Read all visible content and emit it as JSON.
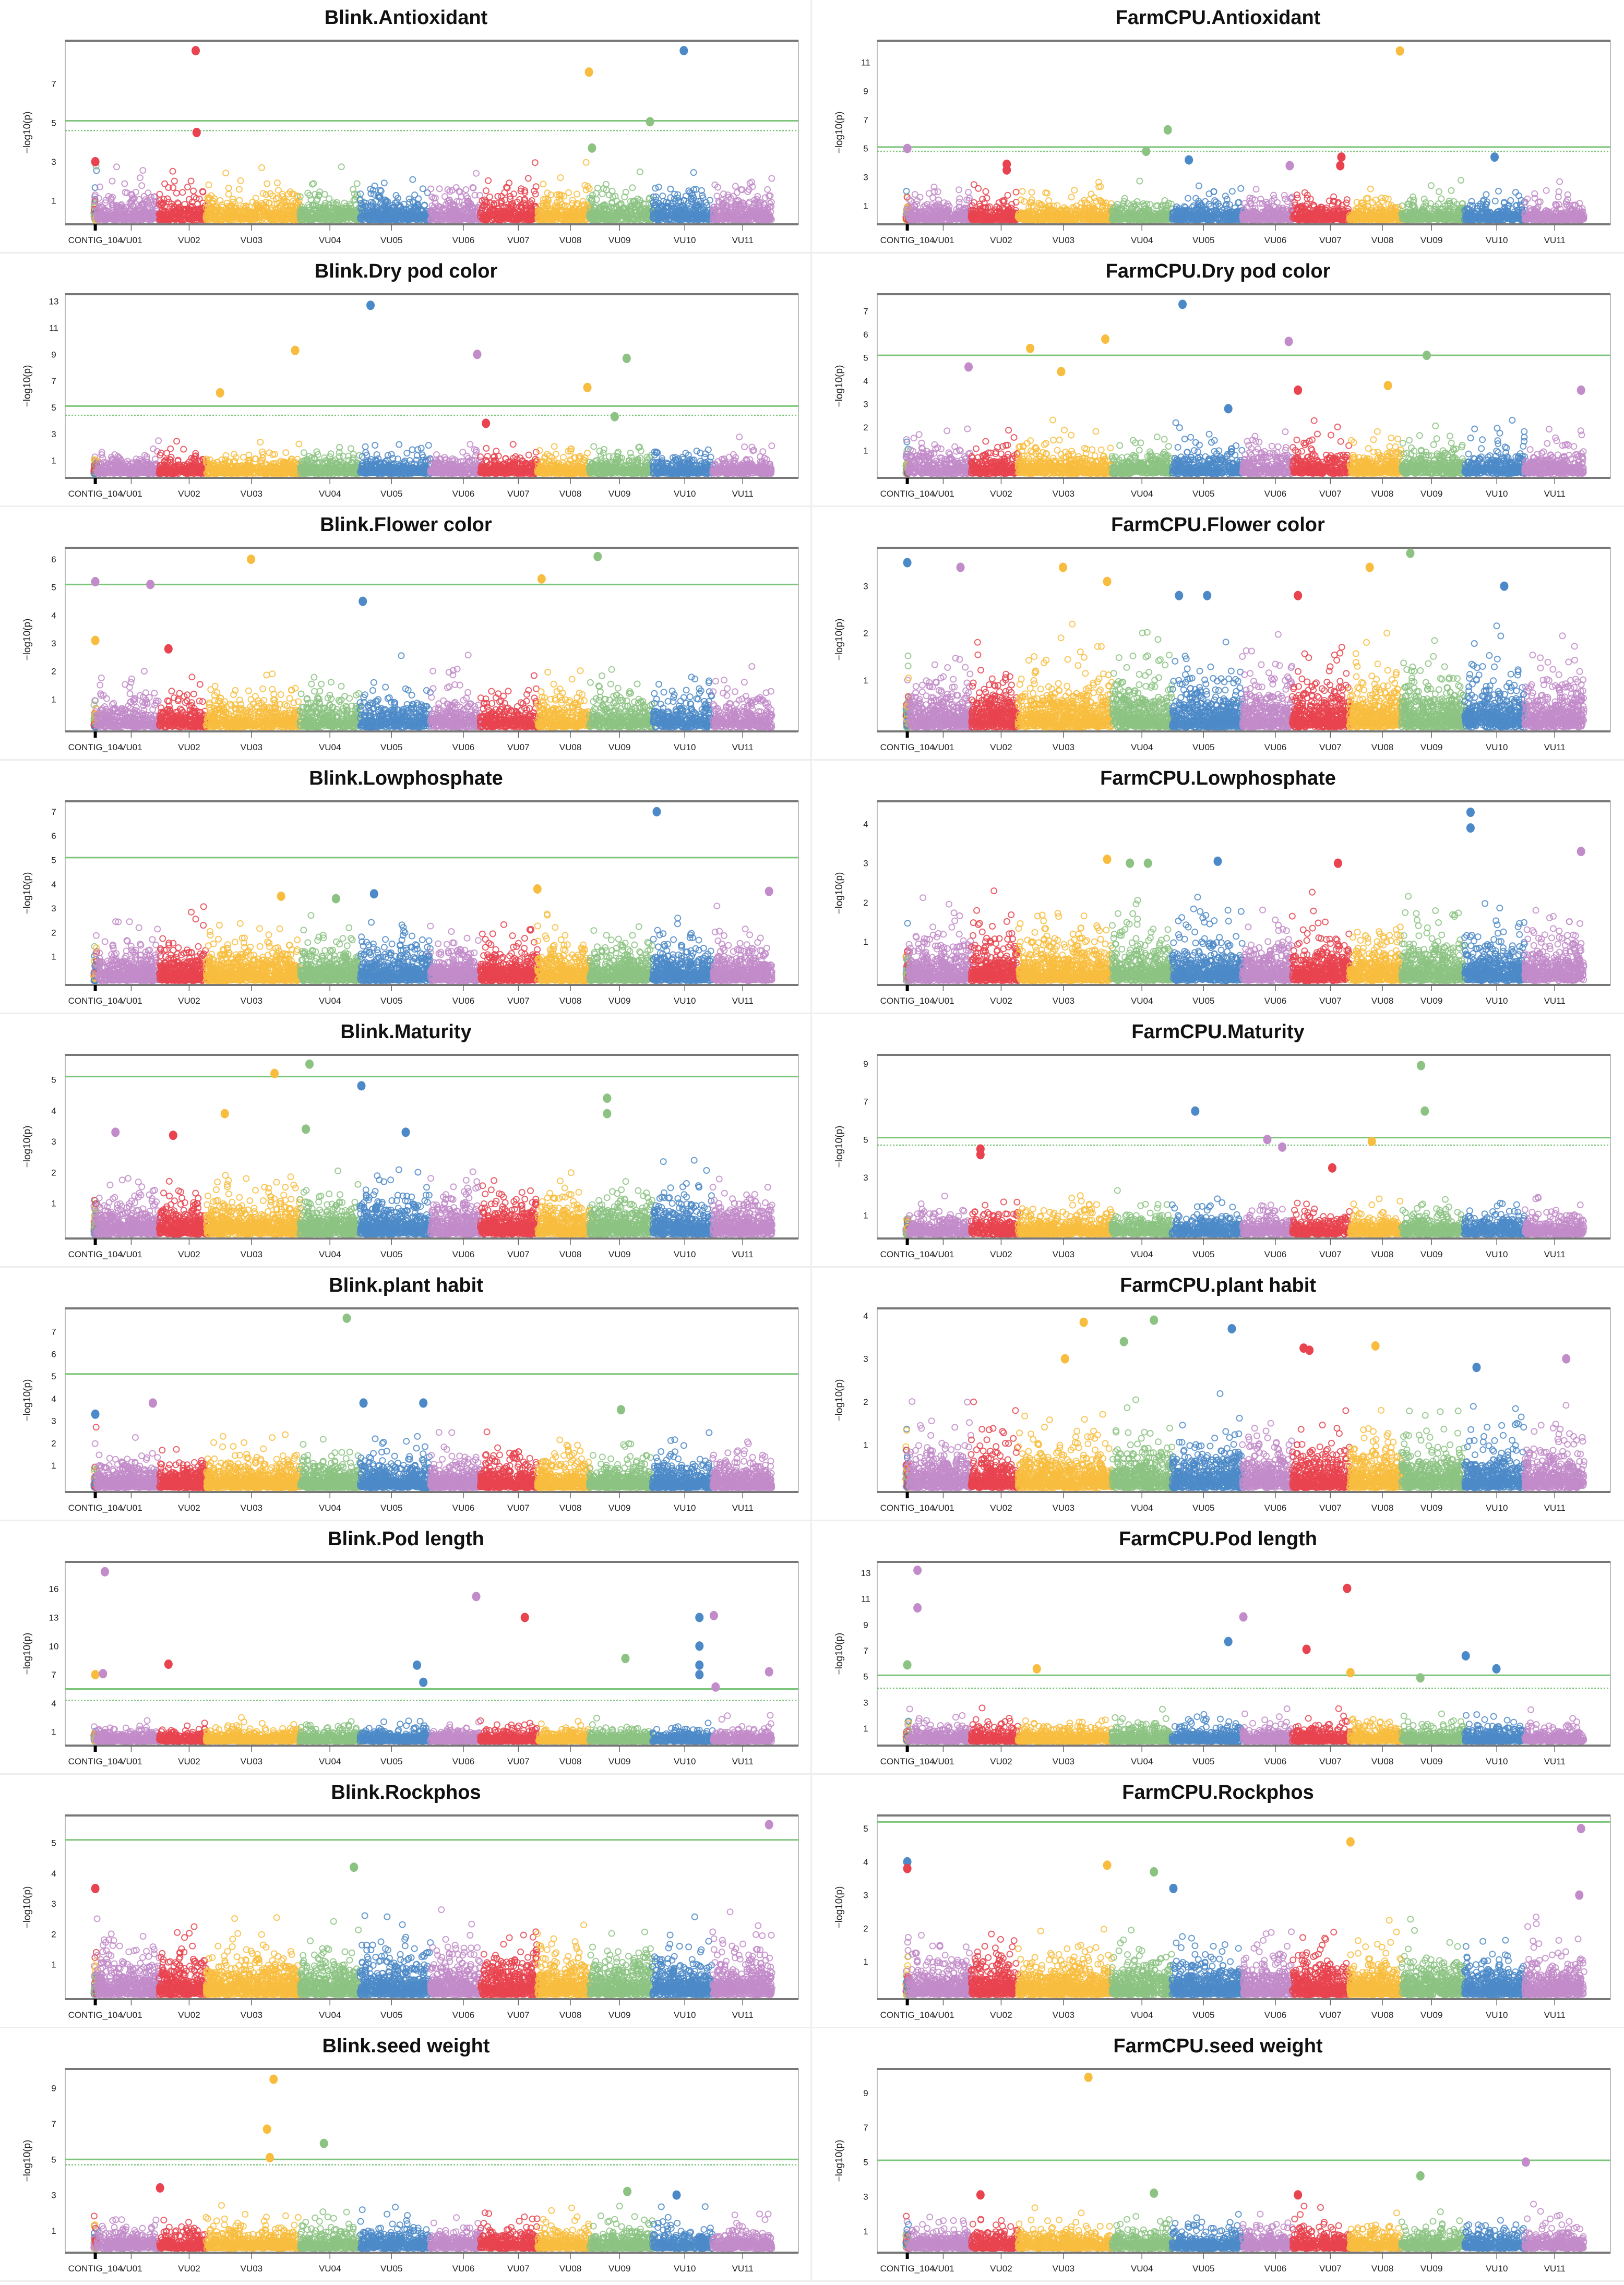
{
  "chart_data": {
    "type": "scatter",
    "subtype": "manhattan",
    "ylabel": "−log10(p)",
    "chromosomes": [
      "CONTIG_104",
      "VU01",
      "VU02",
      "VU03",
      "VU04",
      "VU05",
      "VU06",
      "VU07",
      "VU08",
      "VU09",
      "VU10",
      "VU11"
    ],
    "chromosome_colors": [
      "multi",
      "#C28BC9",
      "#E8434F",
      "#F8BD3E",
      "#8CC383",
      "#4C89C8",
      "#C28BC9",
      "#E8434F",
      "#F8BD3E",
      "#8CC383",
      "#4C89C8",
      "#C28BC9"
    ],
    "threshold_color": "#7CC47A",
    "panels": [
      {
        "title": "Blink.Antioxidant",
        "yticks": [
          1,
          3,
          5,
          7
        ],
        "ylim": [
          0,
          9.05
        ],
        "threshold": 5.1,
        "suggestive": 4.6,
        "background_max": 3.1,
        "dense": false,
        "peaks": [
          [
            2,
            0.78,
            8.7
          ],
          [
            2,
            0.8,
            4.5
          ],
          [
            8,
            0.99,
            7.6
          ],
          [
            9,
            0.96,
            5.05
          ],
          [
            10,
            0.52,
            8.7
          ],
          [
            9,
            0.04,
            3.7
          ],
          [
            0,
            0.5,
            3.0
          ]
        ]
      },
      {
        "title": "FarmCPU.Antioxidant",
        "yticks": [
          1,
          3,
          5,
          7,
          9,
          11
        ],
        "ylim": [
          0,
          12.3
        ],
        "threshold": 5.1,
        "suggestive": 4.8,
        "background_max": 2.9,
        "dense": false,
        "peaks": [
          [
            8,
            0.97,
            11.8
          ],
          [
            4,
            0.93,
            6.3
          ],
          [
            0,
            0.5,
            5.0
          ],
          [
            4,
            0.57,
            4.8
          ],
          [
            5,
            0.24,
            4.2
          ],
          [
            10,
            0.5,
            4.4
          ],
          [
            7,
            0.86,
            4.4
          ],
          [
            7,
            0.84,
            3.8
          ],
          [
            2,
            0.76,
            3.9
          ],
          [
            2,
            0.76,
            3.5
          ],
          [
            6,
            0.95,
            3.8
          ]
        ]
      },
      {
        "title": "Blink.Dry pod color",
        "yticks": [
          1,
          3,
          5,
          7,
          9,
          11,
          13
        ],
        "ylim": [
          0,
          13.3
        ],
        "threshold": 5.1,
        "suggestive": 4.4,
        "background_max": 3.0,
        "dense": false,
        "peaks": [
          [
            5,
            0.15,
            12.7
          ],
          [
            3,
            0.95,
            9.3
          ],
          [
            3,
            0.15,
            6.1
          ],
          [
            6,
            0.94,
            9.0
          ],
          [
            9,
            0.59,
            8.7
          ],
          [
            8,
            0.96,
            6.5
          ],
          [
            9,
            0.4,
            4.3
          ],
          [
            7,
            0.1,
            3.8
          ]
        ]
      },
      {
        "title": "FarmCPU.Dry pod color",
        "yticks": [
          1,
          2,
          3,
          4,
          5,
          6,
          7
        ],
        "ylim": [
          0,
          7.6
        ],
        "threshold": 5.1,
        "suggestive": null,
        "background_max": 2.6,
        "dense": false,
        "peaks": [
          [
            5,
            0.15,
            7.3
          ],
          [
            3,
            0.93,
            5.8
          ],
          [
            3,
            0.13,
            5.4
          ],
          [
            3,
            0.46,
            4.4
          ],
          [
            6,
            0.93,
            5.7
          ],
          [
            9,
            0.4,
            5.1
          ],
          [
            1,
            0.96,
            4.6
          ],
          [
            7,
            0.1,
            3.6
          ],
          [
            8,
            0.74,
            3.8
          ],
          [
            11,
            0.95,
            3.6
          ],
          [
            5,
            0.8,
            2.8
          ]
        ]
      },
      {
        "title": "Blink.Flower color",
        "yticks": [
          1,
          2,
          3,
          4,
          5,
          6
        ],
        "ylim": [
          0,
          6.3
        ],
        "threshold": 5.1,
        "suggestive": null,
        "background_max": 2.6,
        "dense": false,
        "peaks": [
          [
            0,
            0.5,
            5.2
          ],
          [
            1,
            0.86,
            5.1
          ],
          [
            3,
            0.48,
            6.0
          ],
          [
            5,
            0.04,
            4.5
          ],
          [
            8,
            0.08,
            5.3
          ],
          [
            9,
            0.13,
            6.1
          ],
          [
            0,
            0.5,
            3.1
          ],
          [
            2,
            0.2,
            2.8
          ]
        ]
      },
      {
        "title": "FarmCPU.Flower color",
        "yticks": [
          1,
          2,
          3
        ],
        "ylim": [
          0,
          3.75
        ],
        "threshold": null,
        "suggestive": null,
        "background_max": 2.3,
        "dense": true,
        "peaks": [
          [
            9,
            0.14,
            3.7
          ],
          [
            8,
            0.39,
            3.4
          ],
          [
            1,
            0.83,
            3.4
          ],
          [
            3,
            0.48,
            3.4
          ],
          [
            3,
            0.95,
            3.1
          ],
          [
            10,
            0.66,
            3.0
          ],
          [
            5,
            0.1,
            2.8
          ],
          [
            5,
            0.5,
            2.8
          ],
          [
            7,
            0.1,
            2.8
          ],
          [
            0,
            0.5,
            3.5
          ]
        ]
      },
      {
        "title": "Blink.Lowphosphate",
        "yticks": [
          1,
          2,
          3,
          4,
          5,
          6,
          7
        ],
        "ylim": [
          0,
          7.3
        ],
        "threshold": 5.1,
        "suggestive": null,
        "background_max": 3.2,
        "dense": true,
        "peaks": [
          [
            10,
            0.07,
            7.0
          ],
          [
            8,
            0.0,
            3.8
          ],
          [
            5,
            0.2,
            3.6
          ],
          [
            11,
            0.95,
            3.7
          ],
          [
            3,
            0.8,
            3.5
          ],
          [
            4,
            0.6,
            3.4
          ]
        ]
      },
      {
        "title": "FarmCPU.Lowphosphate",
        "yticks": [
          1,
          2,
          3,
          4
        ],
        "ylim": [
          0,
          4.5
        ],
        "threshold": null,
        "suggestive": null,
        "background_max": 2.4,
        "dense": true,
        "peaks": [
          [
            10,
            0.1,
            4.3
          ],
          [
            10,
            0.1,
            3.9
          ],
          [
            11,
            0.95,
            3.3
          ],
          [
            3,
            0.95,
            3.1
          ],
          [
            4,
            0.3,
            3.0
          ],
          [
            4,
            0.6,
            3.0
          ],
          [
            5,
            0.65,
            3.05
          ],
          [
            7,
            0.8,
            3.0
          ]
        ]
      },
      {
        "title": "Blink.Maturity",
        "yticks": [
          1,
          2,
          3,
          4,
          5
        ],
        "ylim": [
          0,
          5.7
        ],
        "threshold": 5.1,
        "suggestive": null,
        "background_max": 2.5,
        "dense": true,
        "peaks": [
          [
            4,
            0.16,
            5.5
          ],
          [
            3,
            0.73,
            5.2
          ],
          [
            5,
            0.02,
            4.8
          ],
          [
            9,
            0.28,
            4.4
          ],
          [
            9,
            0.28,
            3.9
          ],
          [
            3,
            0.2,
            3.9
          ],
          [
            4,
            0.1,
            3.4
          ],
          [
            5,
            0.65,
            3.3
          ],
          [
            1,
            0.3,
            3.3
          ],
          [
            2,
            0.3,
            3.2
          ]
        ]
      },
      {
        "title": "FarmCPU.Maturity",
        "yticks": [
          1,
          3,
          5,
          7,
          9
        ],
        "ylim": [
          0,
          9.3
        ],
        "threshold": 5.1,
        "suggestive": 4.7,
        "background_max": 2.6,
        "dense": false,
        "peaks": [
          [
            9,
            0.31,
            8.9
          ],
          [
            9,
            0.37,
            6.5
          ],
          [
            5,
            0.33,
            6.5
          ],
          [
            6,
            0.5,
            5.0
          ],
          [
            6,
            0.8,
            4.6
          ],
          [
            8,
            0.43,
            4.9
          ],
          [
            2,
            0.2,
            4.5
          ],
          [
            2,
            0.2,
            4.2
          ],
          [
            7,
            0.7,
            3.5
          ]
        ]
      },
      {
        "title": "Blink.plant habit",
        "yticks": [
          1,
          2,
          3,
          4,
          5,
          6,
          7
        ],
        "ylim": [
          0,
          7.9
        ],
        "threshold": 5.1,
        "suggestive": null,
        "background_max": 2.8,
        "dense": true,
        "peaks": [
          [
            4,
            0.78,
            7.6
          ],
          [
            5,
            0.05,
            3.8
          ],
          [
            5,
            0.9,
            3.8
          ],
          [
            1,
            0.9,
            3.8
          ],
          [
            9,
            0.5,
            3.5
          ],
          [
            0,
            0.5,
            3.3
          ]
        ]
      },
      {
        "title": "FarmCPU.plant habit",
        "yticks": [
          1,
          2,
          3,
          4
        ],
        "ylim": [
          0,
          4.1
        ],
        "threshold": null,
        "suggestive": null,
        "background_max": 2.2,
        "dense": true,
        "peaks": [
          [
            4,
            0.7,
            3.9
          ],
          [
            3,
            0.7,
            3.85
          ],
          [
            5,
            0.85,
            3.7
          ],
          [
            8,
            0.5,
            3.3
          ],
          [
            7,
            0.2,
            3.25
          ],
          [
            7,
            0.3,
            3.2
          ],
          [
            4,
            0.2,
            3.4
          ],
          [
            3,
            0.5,
            3.0
          ],
          [
            11,
            0.7,
            3.0
          ],
          [
            10,
            0.2,
            2.8
          ]
        ]
      },
      {
        "title": "Blink.Pod length",
        "yticks": [
          1,
          4,
          7,
          10,
          13,
          16
        ],
        "ylim": [
          0,
          18.5
        ],
        "threshold": 5.5,
        "suggestive": 4.3,
        "background_max": 2.8,
        "dense": false,
        "peaks": [
          [
            1,
            0.13,
            17.8
          ],
          [
            6,
            0.92,
            15.2
          ],
          [
            7,
            0.78,
            13.0
          ],
          [
            10,
            0.78,
            13.0
          ],
          [
            10,
            0.78,
            10.0
          ],
          [
            10,
            0.78,
            8.0
          ],
          [
            10,
            0.78,
            7.0
          ],
          [
            11,
            0.02,
            13.2
          ],
          [
            2,
            0.2,
            8.1
          ],
          [
            5,
            0.81,
            8.0
          ],
          [
            9,
            0.57,
            8.7
          ],
          [
            0,
            0.5,
            7.0
          ],
          [
            1,
            0.1,
            7.1
          ],
          [
            11,
            0.95,
            7.3
          ],
          [
            5,
            0.9,
            6.2
          ],
          [
            11,
            0.05,
            5.7
          ]
        ]
      },
      {
        "title": "FarmCPU.Pod length",
        "yticks": [
          1,
          3,
          5,
          7,
          9,
          11,
          13
        ],
        "ylim": [
          0,
          13.6
        ],
        "threshold": 5.1,
        "suggestive": 4.1,
        "background_max": 2.8,
        "dense": false,
        "peaks": [
          [
            1,
            0.14,
            13.2
          ],
          [
            1,
            0.14,
            10.3
          ],
          [
            7,
            0.96,
            11.8
          ],
          [
            6,
            0.02,
            9.6
          ],
          [
            5,
            0.8,
            7.7
          ],
          [
            7,
            0.25,
            7.1
          ],
          [
            10,
            0.02,
            6.6
          ],
          [
            10,
            0.53,
            5.6
          ],
          [
            3,
            0.2,
            5.6
          ],
          [
            0,
            0.5,
            5.9
          ],
          [
            8,
            0.02,
            5.3
          ],
          [
            9,
            0.3,
            4.9
          ]
        ]
      },
      {
        "title": "Blink.Rockphos",
        "yticks": [
          1,
          2,
          3,
          4,
          5
        ],
        "ylim": [
          0,
          5.8
        ],
        "threshold": 5.1,
        "suggestive": null,
        "background_max": 2.9,
        "dense": true,
        "peaks": [
          [
            11,
            0.95,
            5.6
          ],
          [
            4,
            0.9,
            4.2
          ],
          [
            0,
            0.5,
            3.5
          ]
        ]
      },
      {
        "title": "FarmCPU.Rockphos",
        "yticks": [
          1,
          2,
          3,
          4,
          5
        ],
        "ylim": [
          0,
          5.3
        ],
        "threshold": 5.2,
        "suggestive": null,
        "background_max": 2.5,
        "dense": true,
        "peaks": [
          [
            11,
            0.95,
            5.0
          ],
          [
            8,
            0.02,
            4.6
          ],
          [
            3,
            0.95,
            3.9
          ],
          [
            4,
            0.7,
            3.7
          ],
          [
            5,
            0.02,
            3.2
          ],
          [
            0,
            0.5,
            4.0
          ],
          [
            0,
            0.5,
            3.8
          ],
          [
            11,
            0.92,
            3.0
          ]
        ]
      },
      {
        "title": "Blink.seed weight",
        "yticks": [
          1,
          3,
          5,
          7,
          9
        ],
        "ylim": [
          0,
          9.9
        ],
        "threshold": 5.0,
        "suggestive": 4.7,
        "background_max": 2.6,
        "dense": false,
        "peaks": [
          [
            3,
            0.72,
            9.5
          ],
          [
            3,
            0.65,
            6.7
          ],
          [
            3,
            0.68,
            5.1
          ],
          [
            4,
            0.4,
            5.9
          ],
          [
            2,
            0.02,
            3.4
          ],
          [
            9,
            0.6,
            3.2
          ],
          [
            10,
            0.4,
            3.0
          ]
        ]
      },
      {
        "title": "FarmCPU.seed weight",
        "yticks": [
          1,
          3,
          5,
          7,
          9
        ],
        "ylim": [
          0,
          10.2
        ],
        "threshold": 5.1,
        "suggestive": null,
        "background_max": 2.6,
        "dense": false,
        "peaks": [
          [
            3,
            0.75,
            9.9
          ],
          [
            11,
            0.02,
            5.0
          ],
          [
            9,
            0.3,
            4.2
          ],
          [
            4,
            0.7,
            3.2
          ],
          [
            2,
            0.2,
            3.1
          ],
          [
            7,
            0.1,
            3.1
          ]
        ]
      }
    ]
  }
}
